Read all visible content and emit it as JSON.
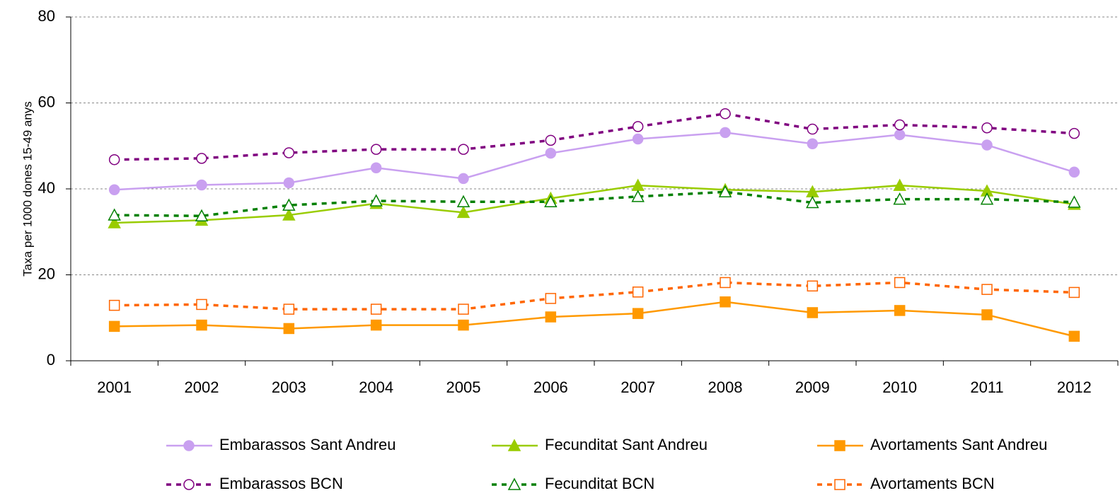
{
  "chart_data": {
    "type": "line",
    "y_label": "Taxa per 1000 dones 15-49 anys",
    "categories": [
      "2001",
      "2002",
      "2003",
      "2004",
      "2005",
      "2006",
      "2007",
      "2008",
      "2009",
      "2010",
      "2011",
      "2012"
    ],
    "ylim": [
      0,
      80
    ],
    "yticks": [
      0,
      20,
      40,
      60,
      80
    ],
    "grid": true,
    "series": [
      {
        "name": "Embarassos Sant Andreu",
        "color": "#c9a0f0",
        "marker": "circle",
        "filled": true,
        "dash": "solid",
        "values": [
          39.8,
          40.9,
          41.4,
          44.9,
          42.4,
          48.3,
          51.6,
          53.1,
          50.5,
          52.6,
          50.2,
          43.9
        ]
      },
      {
        "name": "Fecunditat Sant Andreu",
        "color": "#99cc00",
        "marker": "triangle",
        "filled": true,
        "dash": "solid",
        "values": [
          32.1,
          32.7,
          33.9,
          36.6,
          34.5,
          37.8,
          40.8,
          39.8,
          39.3,
          40.8,
          39.5,
          36.4
        ]
      },
      {
        "name": "Avortaments Sant Andreu",
        "color": "#ff9900",
        "marker": "square",
        "filled": true,
        "dash": "solid",
        "values": [
          8.0,
          8.3,
          7.5,
          8.3,
          8.3,
          10.2,
          11.0,
          13.7,
          11.2,
          11.7,
          10.7,
          5.7
        ]
      },
      {
        "name": "Embarassos BCN",
        "color": "#800080",
        "marker": "circle",
        "filled": false,
        "dash": "dashed",
        "values": [
          46.8,
          47.1,
          48.4,
          49.2,
          49.2,
          51.3,
          54.5,
          57.5,
          53.9,
          54.9,
          54.2,
          52.9
        ]
      },
      {
        "name": "Fecunditat BCN",
        "color": "#008000",
        "marker": "triangle",
        "filled": false,
        "dash": "dashed",
        "values": [
          33.9,
          33.7,
          36.2,
          37.2,
          37.0,
          37.0,
          38.2,
          39.3,
          36.8,
          37.6,
          37.6,
          36.9
        ]
      },
      {
        "name": "Avortaments BCN",
        "color": "#ff6600",
        "marker": "square",
        "filled": false,
        "dash": "dashed",
        "values": [
          12.9,
          13.1,
          12.0,
          12.0,
          12.0,
          14.5,
          16.0,
          18.2,
          17.4,
          18.2,
          16.6,
          15.9
        ]
      }
    ]
  }
}
